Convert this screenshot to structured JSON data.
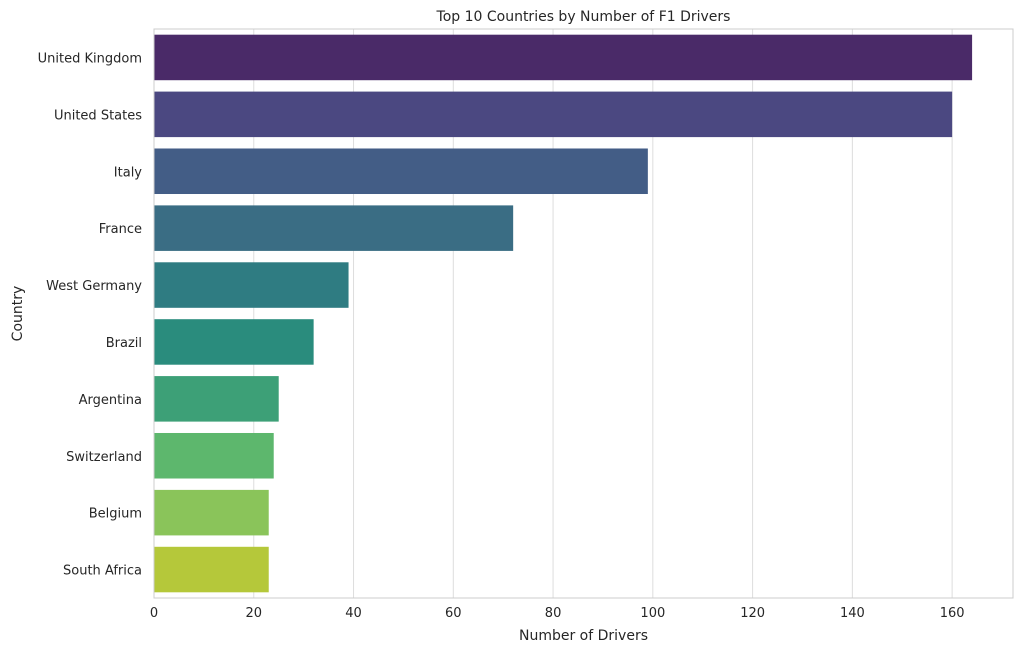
{
  "chart_data": {
    "type": "bar",
    "orientation": "horizontal",
    "title": "Top 10 Countries by Number of F1 Drivers",
    "xlabel": "Number of Drivers",
    "ylabel": "Country",
    "categories": [
      "United Kingdom",
      "United States",
      "Italy",
      "France",
      "West Germany",
      "Brazil",
      "Argentina",
      "Switzerland",
      "Belgium",
      "South Africa"
    ],
    "values": [
      164,
      160,
      99,
      72,
      39,
      32,
      25,
      24,
      23,
      23
    ],
    "colors": [
      "#4a2a68",
      "#4b4881",
      "#435d86",
      "#3a6d84",
      "#2f7c82",
      "#2a8c7d",
      "#3da077",
      "#5db76d",
      "#8ac45a",
      "#b5c83a"
    ],
    "xlim": [
      0,
      172.2
    ],
    "xticks": [
      0,
      20,
      40,
      60,
      80,
      100,
      120,
      140,
      160
    ],
    "grid": true,
    "legend": false
  }
}
